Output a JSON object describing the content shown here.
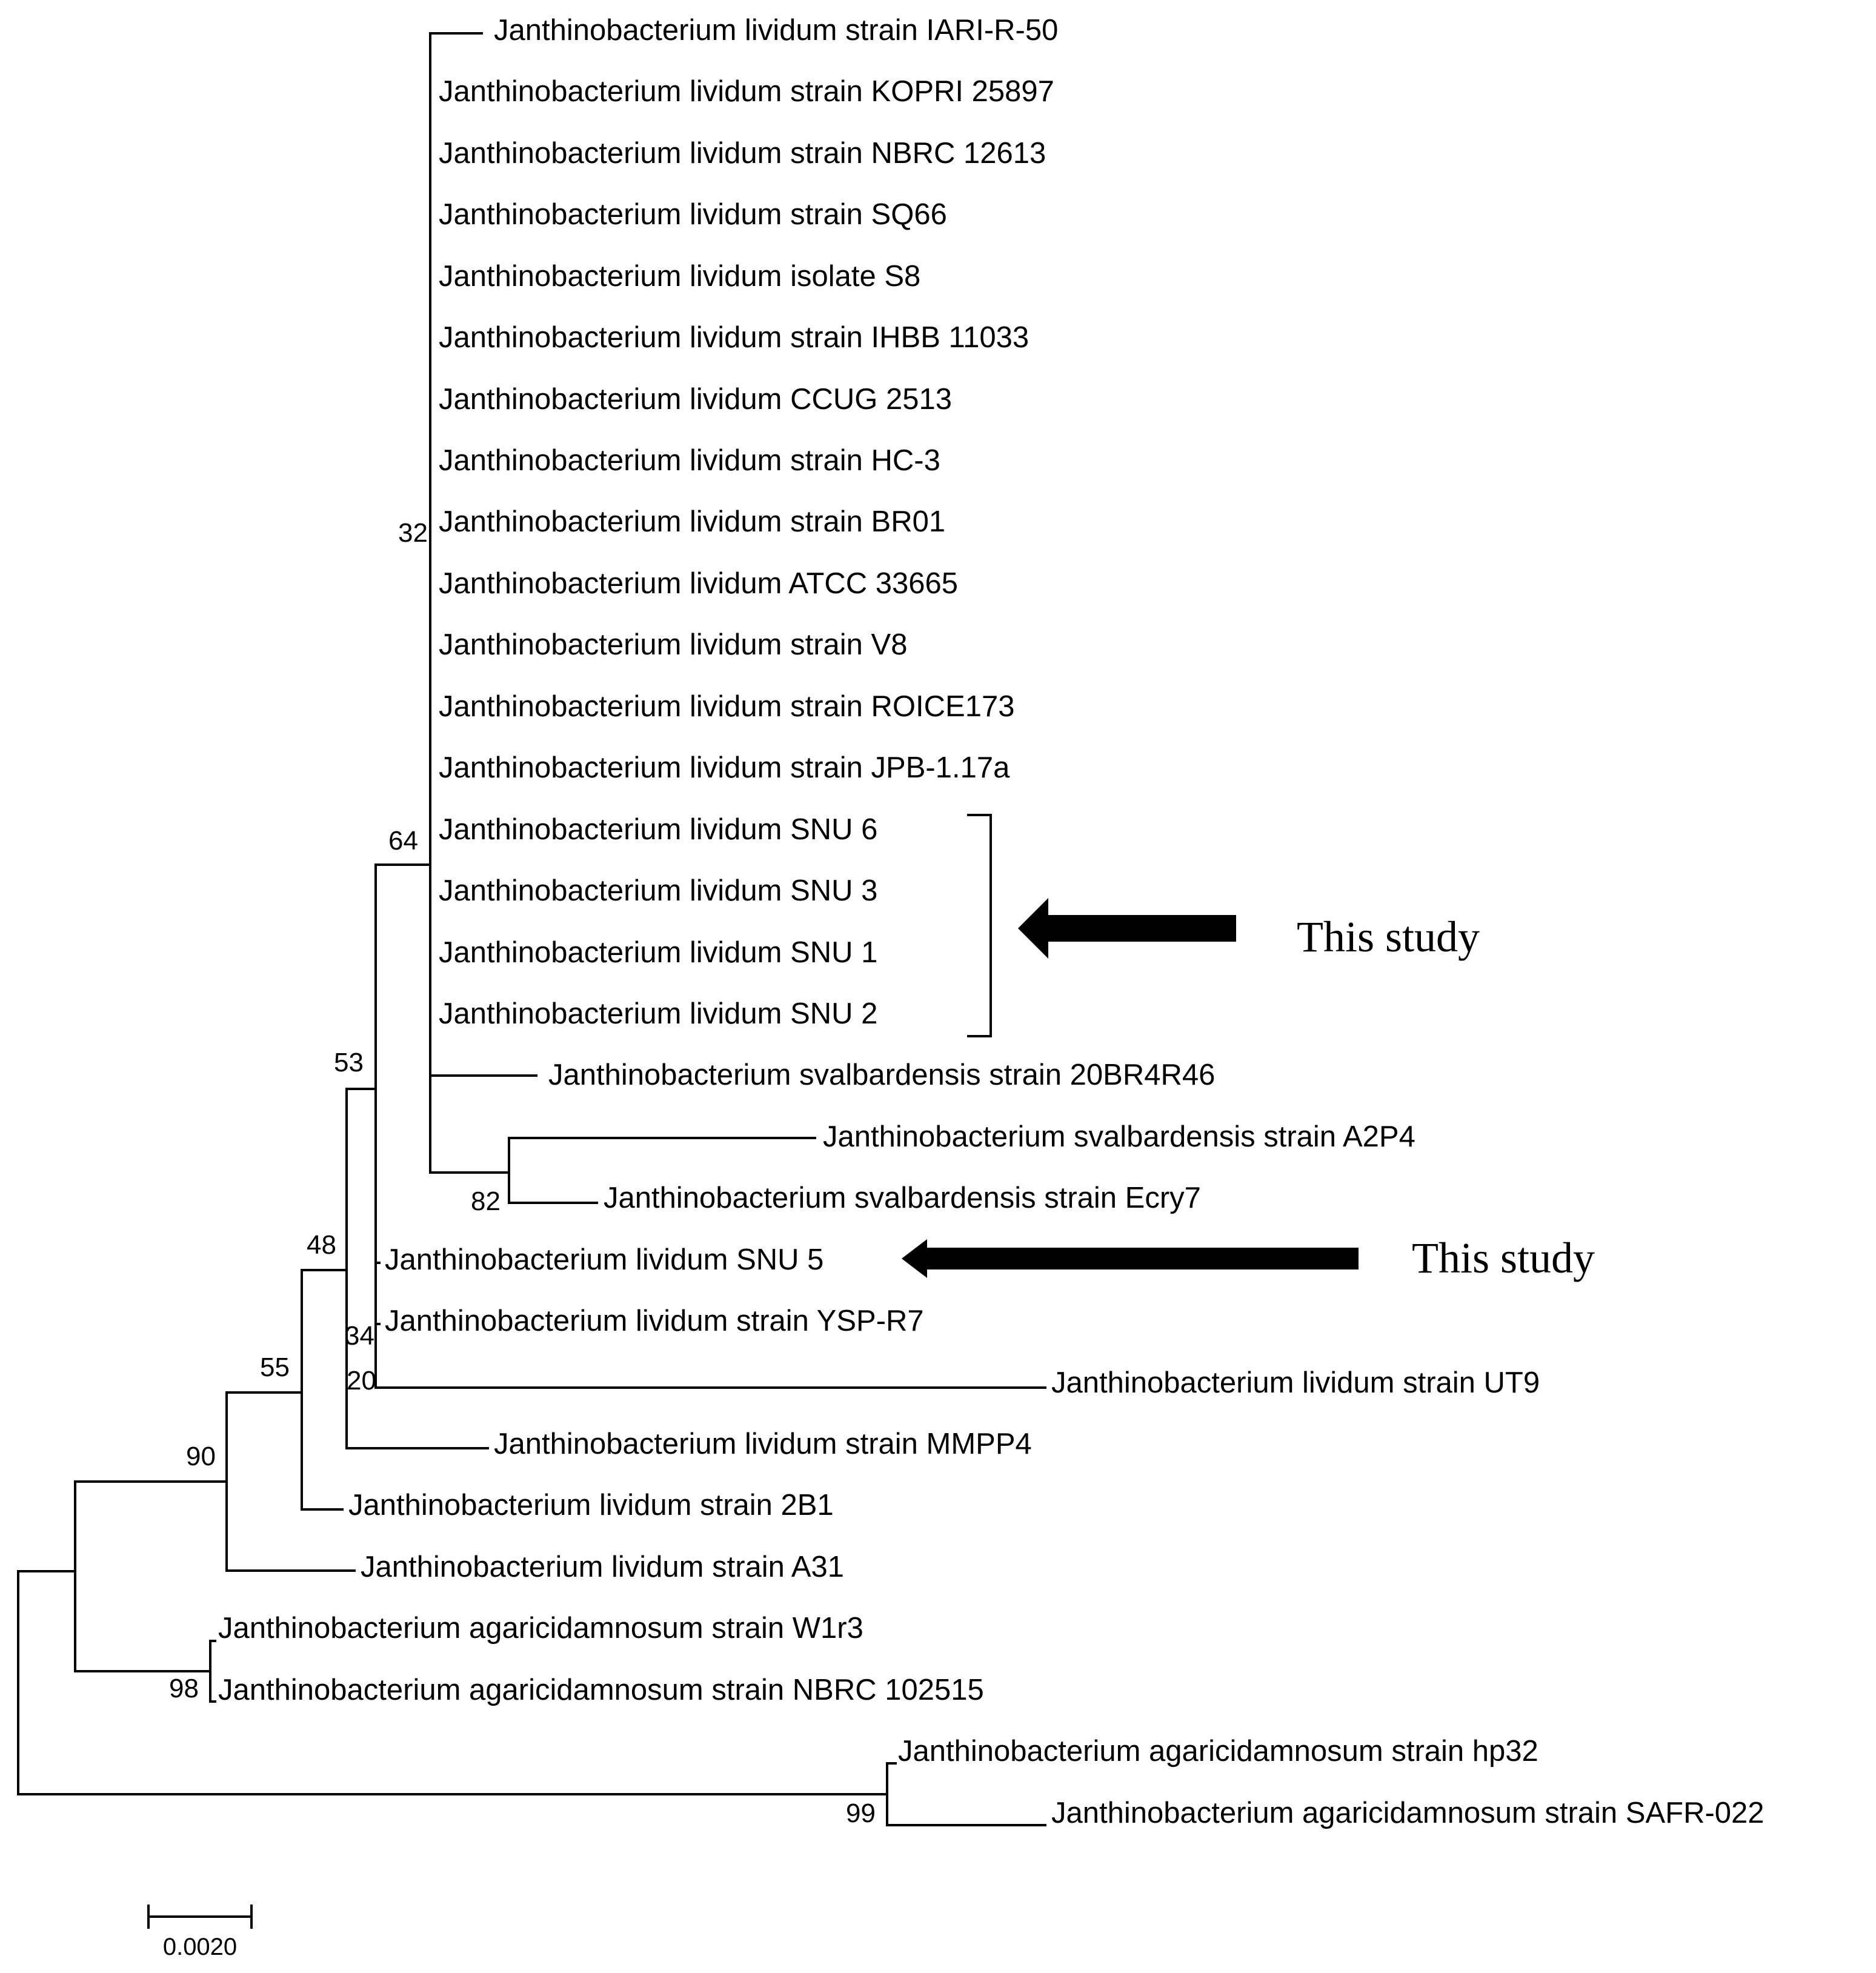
{
  "leaves": [
    "Janthinobacterium lividum strain IARI-R-50",
    "Janthinobacterium lividum strain KOPRI 25897",
    "Janthinobacterium lividum strain NBRC 12613",
    "Janthinobacterium lividum strain SQ66",
    "Janthinobacterium lividum isolate S8",
    "Janthinobacterium lividum strain IHBB 11033",
    "Janthinobacterium lividum CCUG 2513",
    "Janthinobacterium lividum strain HC-3",
    "Janthinobacterium lividum strain BR01",
    "Janthinobacterium lividum ATCC 33665",
    "Janthinobacterium lividum strain V8",
    "Janthinobacterium lividum strain ROICE173",
    "Janthinobacterium lividum strain JPB-1.17a",
    "Janthinobacterium lividum SNU 6",
    "Janthinobacterium lividum SNU 3",
    "Janthinobacterium lividum SNU 1",
    "Janthinobacterium lividum SNU 2",
    "Janthinobacterium svalbardensis strain 20BR4R46",
    "Janthinobacterium svalbardensis strain A2P4",
    "Janthinobacterium svalbardensis strain Ecry7",
    "Janthinobacterium lividum SNU 5",
    "Janthinobacterium lividum strain YSP-R7",
    "Janthinobacterium lividum strain UT9",
    "Janthinobacterium lividum strain MMPP4",
    "Janthinobacterium lividum strain 2B1",
    "Janthinobacterium lividum strain A31",
    "Janthinobacterium agaricidamnosum strain W1r3",
    "Janthinobacterium agaricidamnosum strain NBRC 102515",
    "Janthinobacterium agaricidamnosum strain hp32",
    "Janthinobacterium agaricidamnosum strain SAFR-022"
  ],
  "bootstrap": {
    "b32": "32",
    "b64": "64",
    "b82": "82",
    "b53": "53",
    "b48": "48",
    "b34": "34",
    "b20": "20",
    "b55": "55",
    "b90": "90",
    "b98": "98",
    "b99": "99"
  },
  "annotations": {
    "study_label_1": "This study",
    "study_label_2": "This study"
  },
  "scale_bar": {
    "value": 0.002,
    "label": "0.0020"
  }
}
